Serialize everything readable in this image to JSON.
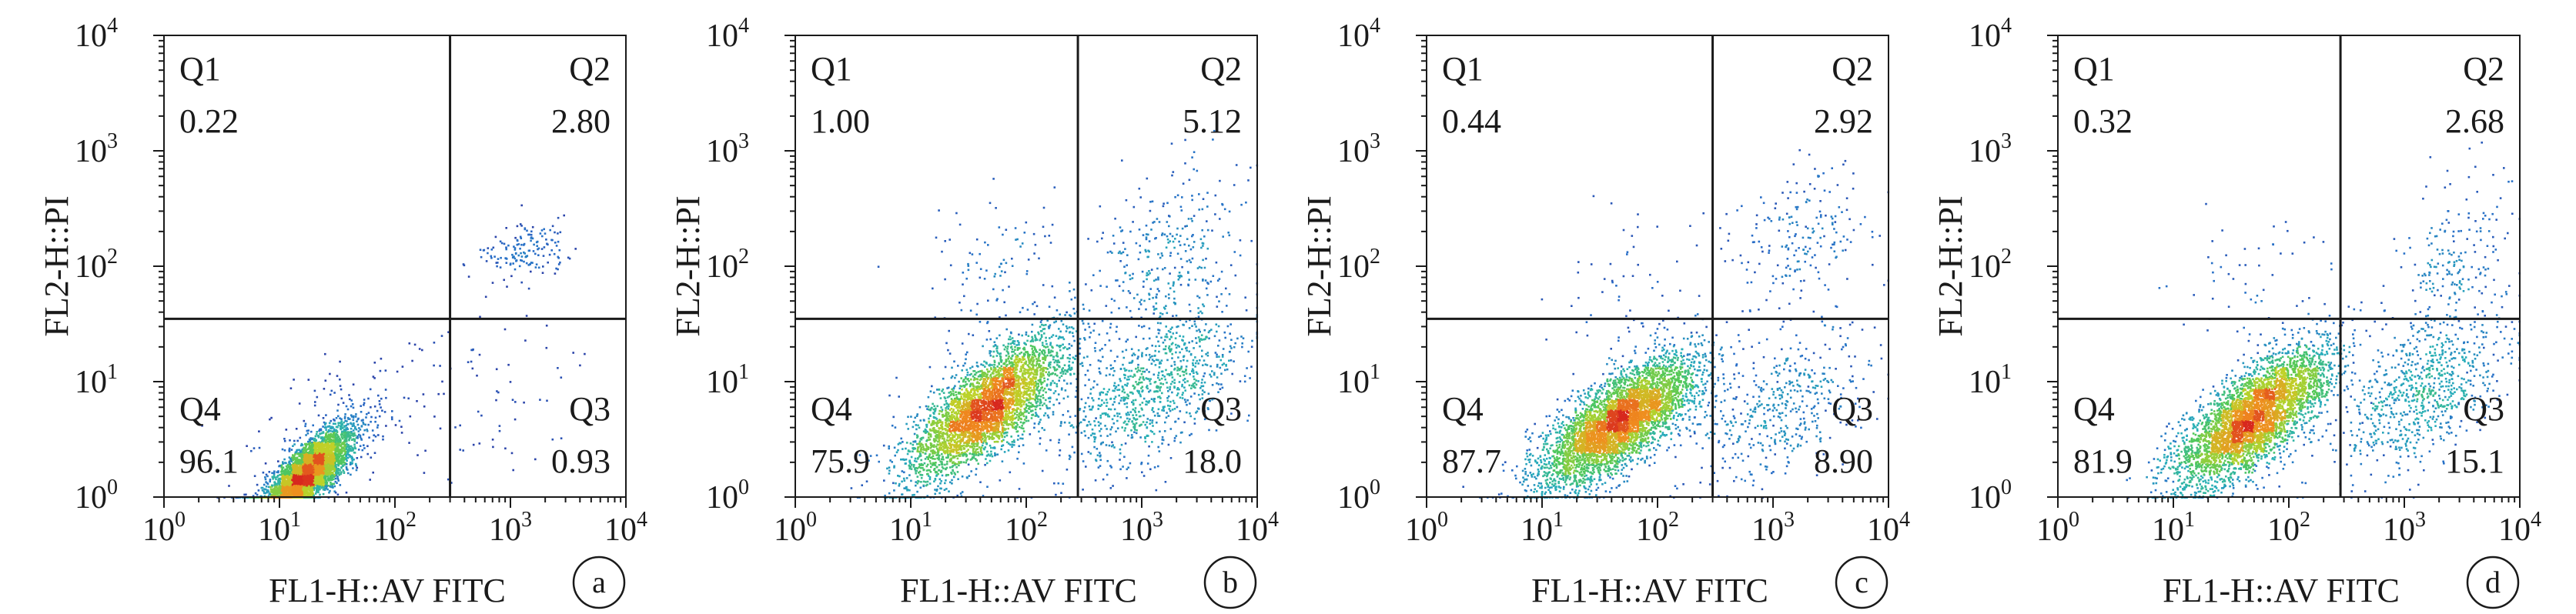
{
  "panel_letter_color": "#1a1a1a",
  "chart_data": [
    {
      "type": "scatter",
      "panel_label": "a",
      "xlabel": "FL1-H::AV FITC",
      "ylabel": "FL2-H::PI",
      "xscale": "log",
      "yscale": "log",
      "xlim": [
        1,
        10000
      ],
      "ylim": [
        1,
        10000
      ],
      "x_ticks": [
        {
          "base": "10",
          "exp": "0"
        },
        {
          "base": "10",
          "exp": "1"
        },
        {
          "base": "10",
          "exp": "2"
        },
        {
          "base": "10",
          "exp": "3"
        },
        {
          "base": "10",
          "exp": "4"
        }
      ],
      "y_ticks": [
        {
          "base": "10",
          "exp": "0"
        },
        {
          "base": "10",
          "exp": "1"
        },
        {
          "base": "10",
          "exp": "2"
        },
        {
          "base": "10",
          "exp": "3"
        },
        {
          "base": "10",
          "exp": "4"
        }
      ],
      "gate": {
        "x": 300,
        "y": 35
      },
      "quadrants": [
        {
          "name": "Q1",
          "percent": "0.22"
        },
        {
          "name": "Q2",
          "percent": "2.80"
        },
        {
          "name": "Q3",
          "percent": "0.93"
        },
        {
          "name": "Q4",
          "percent": "96.1"
        }
      ],
      "populations": [
        {
          "cx": 17,
          "cy": 1.6,
          "sx": 0.2,
          "sy": 0.2,
          "rho": 0.78,
          "weight": 0.93
        },
        {
          "cx": 1300,
          "cy": 140,
          "sx": 0.18,
          "sy": 0.12,
          "rho": 0.3,
          "weight": 0.03
        },
        {
          "cx": 800,
          "cy": 8,
          "sx": 0.35,
          "sy": 0.35,
          "rho": 0.2,
          "weight": 0.01
        },
        {
          "cx": 40,
          "cy": 5,
          "sx": 0.45,
          "sy": 0.35,
          "rho": 0.6,
          "weight": 0.03
        }
      ]
    },
    {
      "type": "scatter",
      "panel_label": "b",
      "xlabel": "FL1-H::AV FITC",
      "ylabel": "FL2-H::PI",
      "xscale": "log",
      "yscale": "log",
      "xlim": [
        1,
        10000
      ],
      "ylim": [
        1,
        10000
      ],
      "x_ticks": [
        {
          "base": "10",
          "exp": "0"
        },
        {
          "base": "10",
          "exp": "1"
        },
        {
          "base": "10",
          "exp": "2"
        },
        {
          "base": "10",
          "exp": "3"
        },
        {
          "base": "10",
          "exp": "4"
        }
      ],
      "y_ticks": [
        {
          "base": "10",
          "exp": "0"
        },
        {
          "base": "10",
          "exp": "1"
        },
        {
          "base": "10",
          "exp": "2"
        },
        {
          "base": "10",
          "exp": "3"
        },
        {
          "base": "10",
          "exp": "4"
        }
      ],
      "gate": {
        "x": 280,
        "y": 35
      },
      "quadrants": [
        {
          "name": "Q1",
          "percent": "1.00"
        },
        {
          "name": "Q2",
          "percent": "5.12"
        },
        {
          "name": "Q3",
          "percent": "18.0"
        },
        {
          "name": "Q4",
          "percent": "75.9"
        }
      ],
      "populations": [
        {
          "cx": 45,
          "cy": 6,
          "sx": 0.33,
          "sy": 0.3,
          "rho": 0.72,
          "weight": 0.74
        },
        {
          "cx": 1200,
          "cy": 9,
          "sx": 0.4,
          "sy": 0.35,
          "rho": 0.55,
          "weight": 0.18
        },
        {
          "cx": 1500,
          "cy": 120,
          "sx": 0.35,
          "sy": 0.4,
          "rho": 0.4,
          "weight": 0.06
        },
        {
          "cx": 60,
          "cy": 80,
          "sx": 0.35,
          "sy": 0.35,
          "rho": 0.3,
          "weight": 0.02
        }
      ]
    },
    {
      "type": "scatter",
      "panel_label": "c",
      "xlabel": "FL1-H::AV FITC",
      "ylabel": "FL2-H::PI",
      "xscale": "log",
      "yscale": "log",
      "xlim": [
        1,
        10000
      ],
      "ylim": [
        1,
        10000
      ],
      "x_ticks": [
        {
          "base": "10",
          "exp": "0"
        },
        {
          "base": "10",
          "exp": "1"
        },
        {
          "base": "10",
          "exp": "2"
        },
        {
          "base": "10",
          "exp": "3"
        },
        {
          "base": "10",
          "exp": "4"
        }
      ],
      "y_ticks": [
        {
          "base": "10",
          "exp": "0"
        },
        {
          "base": "10",
          "exp": "1"
        },
        {
          "base": "10",
          "exp": "2"
        },
        {
          "base": "10",
          "exp": "3"
        },
        {
          "base": "10",
          "exp": "4"
        }
      ],
      "gate": {
        "x": 300,
        "y": 35
      },
      "quadrants": [
        {
          "name": "Q1",
          "percent": "0.44"
        },
        {
          "name": "Q2",
          "percent": "2.92"
        },
        {
          "name": "Q3",
          "percent": "8.90"
        },
        {
          "name": "Q4",
          "percent": "87.7"
        }
      ],
      "populations": [
        {
          "cx": 45,
          "cy": 4.5,
          "sx": 0.33,
          "sy": 0.28,
          "rho": 0.72,
          "weight": 0.86
        },
        {
          "cx": 1100,
          "cy": 6,
          "sx": 0.4,
          "sy": 0.33,
          "rho": 0.45,
          "weight": 0.09
        },
        {
          "cx": 1500,
          "cy": 180,
          "sx": 0.33,
          "sy": 0.35,
          "rho": 0.3,
          "weight": 0.04
        },
        {
          "cx": 60,
          "cy": 80,
          "sx": 0.35,
          "sy": 0.35,
          "rho": 0.2,
          "weight": 0.01
        }
      ]
    },
    {
      "type": "scatter",
      "panel_label": "d",
      "xlabel": "FL1-H::AV FITC",
      "ylabel": "FL2-H::PI",
      "xscale": "log",
      "yscale": "log",
      "xlim": [
        1,
        10000
      ],
      "ylim": [
        1,
        10000
      ],
      "x_ticks": [
        {
          "base": "10",
          "exp": "0"
        },
        {
          "base": "10",
          "exp": "1"
        },
        {
          "base": "10",
          "exp": "2"
        },
        {
          "base": "10",
          "exp": "3"
        },
        {
          "base": "10",
          "exp": "4"
        }
      ],
      "y_ticks": [
        {
          "base": "10",
          "exp": "0"
        },
        {
          "base": "10",
          "exp": "1"
        },
        {
          "base": "10",
          "exp": "2"
        },
        {
          "base": "10",
          "exp": "3"
        },
        {
          "base": "10",
          "exp": "4"
        }
      ],
      "gate": {
        "x": 280,
        "y": 35
      },
      "quadrants": [
        {
          "name": "Q1",
          "percent": "0.32"
        },
        {
          "name": "Q2",
          "percent": "2.68"
        },
        {
          "name": "Q3",
          "percent": "15.1"
        },
        {
          "name": "Q4",
          "percent": "81.9"
        }
      ],
      "populations": [
        {
          "cx": 50,
          "cy": 5,
          "sx": 0.33,
          "sy": 0.3,
          "rho": 0.72,
          "weight": 0.8
        },
        {
          "cx": 1400,
          "cy": 8,
          "sx": 0.38,
          "sy": 0.35,
          "rho": 0.6,
          "weight": 0.15
        },
        {
          "cx": 2500,
          "cy": 100,
          "sx": 0.25,
          "sy": 0.4,
          "rho": 0.5,
          "weight": 0.04
        },
        {
          "cx": 60,
          "cy": 80,
          "sx": 0.35,
          "sy": 0.35,
          "rho": 0.2,
          "weight": 0.01
        }
      ]
    }
  ]
}
